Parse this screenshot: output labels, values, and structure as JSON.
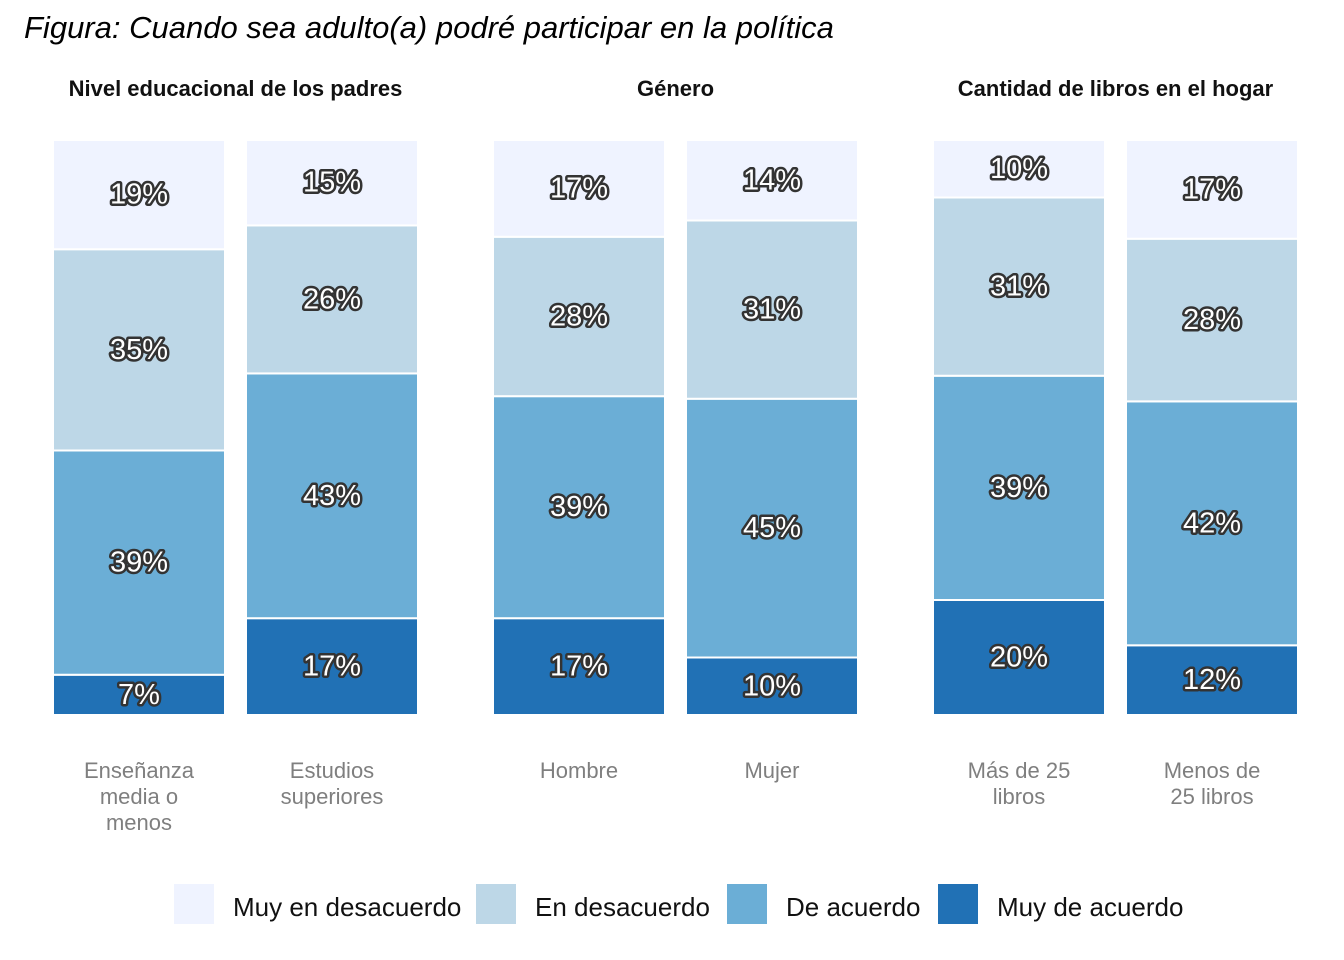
{
  "title": "Figura: Cuando sea adulto(a) podré participar en la política",
  "colors": {
    "Muy en desacuerdo": "#eff3ff",
    "En desacuerdo": "#bdd7e7",
    "De acuerdo": "#6baed6",
    "Muy de acuerdo": "#2171b5"
  },
  "legend": [
    "Muy en desacuerdo",
    "En desacuerdo",
    "De acuerdo",
    "Muy de acuerdo"
  ],
  "chart_data": {
    "type": "bar",
    "stacked": true,
    "percent": true,
    "ylim": [
      0,
      100
    ],
    "legend_position": "bottom",
    "grid": false,
    "stack_order_bottom_to_top": [
      "Muy de acuerdo",
      "De acuerdo",
      "En desacuerdo",
      "Muy en desacuerdo"
    ],
    "panels": [
      {
        "title": "Nivel educacional de los padres",
        "categories": [
          {
            "label": [
              "Enseñanza",
              "media o",
              "menos"
            ],
            "values": {
              "Muy de acuerdo": 7,
              "De acuerdo": 39,
              "En desacuerdo": 35,
              "Muy en desacuerdo": 19
            }
          },
          {
            "label": [
              "Estudios",
              "superiores"
            ],
            "values": {
              "Muy de acuerdo": 17,
              "De acuerdo": 43,
              "En desacuerdo": 26,
              "Muy en desacuerdo": 15
            }
          }
        ]
      },
      {
        "title": "Género",
        "categories": [
          {
            "label": [
              "Hombre"
            ],
            "values": {
              "Muy de acuerdo": 17,
              "De acuerdo": 39,
              "En desacuerdo": 28,
              "Muy en desacuerdo": 17
            }
          },
          {
            "label": [
              "Mujer"
            ],
            "values": {
              "Muy de acuerdo": 10,
              "De acuerdo": 45,
              "En desacuerdo": 31,
              "Muy en desacuerdo": 14
            }
          }
        ]
      },
      {
        "title": "Cantidad de libros en el hogar",
        "categories": [
          {
            "label": [
              "Más de 25",
              "libros"
            ],
            "values": {
              "Muy de acuerdo": 20,
              "De acuerdo": 39,
              "En desacuerdo": 31,
              "Muy en desacuerdo": 10
            }
          },
          {
            "label": [
              "Menos de",
              "25 libros"
            ],
            "values": {
              "Muy de acuerdo": 12,
              "De acuerdo": 42,
              "En desacuerdo": 28,
              "Muy en desacuerdo": 17
            }
          }
        ]
      }
    ]
  }
}
